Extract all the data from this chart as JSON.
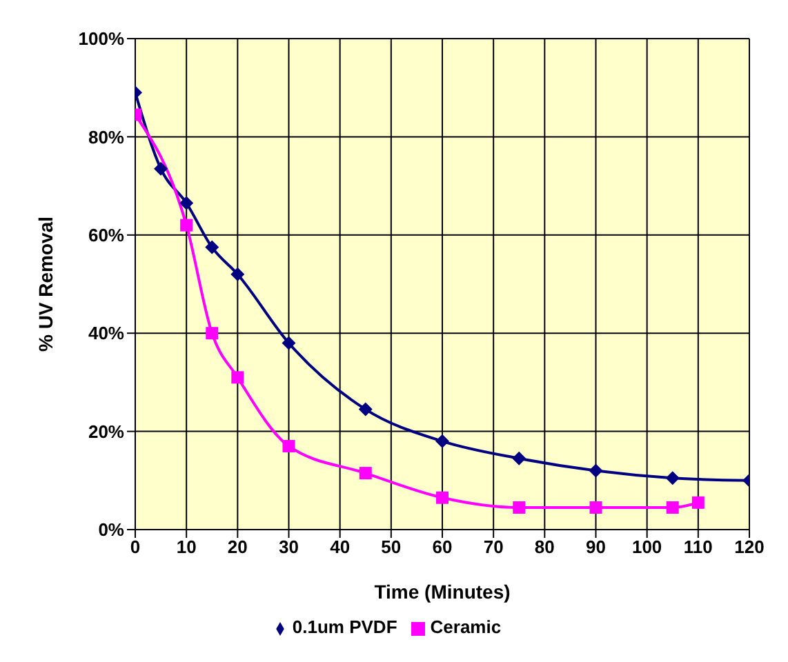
{
  "chart_data": {
    "type": "line",
    "xlabel": "Time (Minutes)",
    "ylabel": "% UV Removal",
    "x": [
      0,
      5,
      10,
      15,
      20,
      30,
      45,
      60,
      75,
      90,
      105,
      110,
      120
    ],
    "series": [
      {
        "name": "0.1um PVDF",
        "color": "#000080",
        "marker": "diamond",
        "values": [
          89,
          73.5,
          66.5,
          57.5,
          52,
          38,
          24.5,
          18,
          14.5,
          12,
          10.5,
          null,
          10
        ]
      },
      {
        "name": "Ceramic",
        "color": "#ff00ff",
        "marker": "square",
        "values": [
          84.5,
          null,
          62,
          40,
          31,
          17,
          11.5,
          6.5,
          4.5,
          4.5,
          4.5,
          5.5,
          null
        ]
      }
    ],
    "xlim": [
      0,
      120
    ],
    "xticks": [
      0,
      10,
      20,
      30,
      40,
      50,
      60,
      70,
      80,
      90,
      100,
      110,
      120
    ],
    "ylim": [
      0,
      100
    ],
    "yticks": [
      {
        "value": 0,
        "label": "0%"
      },
      {
        "value": 20,
        "label": "20%"
      },
      {
        "value": 40,
        "label": "40%"
      },
      {
        "value": 60,
        "label": "60%"
      },
      {
        "value": 80,
        "label": "80%"
      },
      {
        "value": 100,
        "label": "100%"
      }
    ],
    "grid": true,
    "legend": "bottom"
  }
}
